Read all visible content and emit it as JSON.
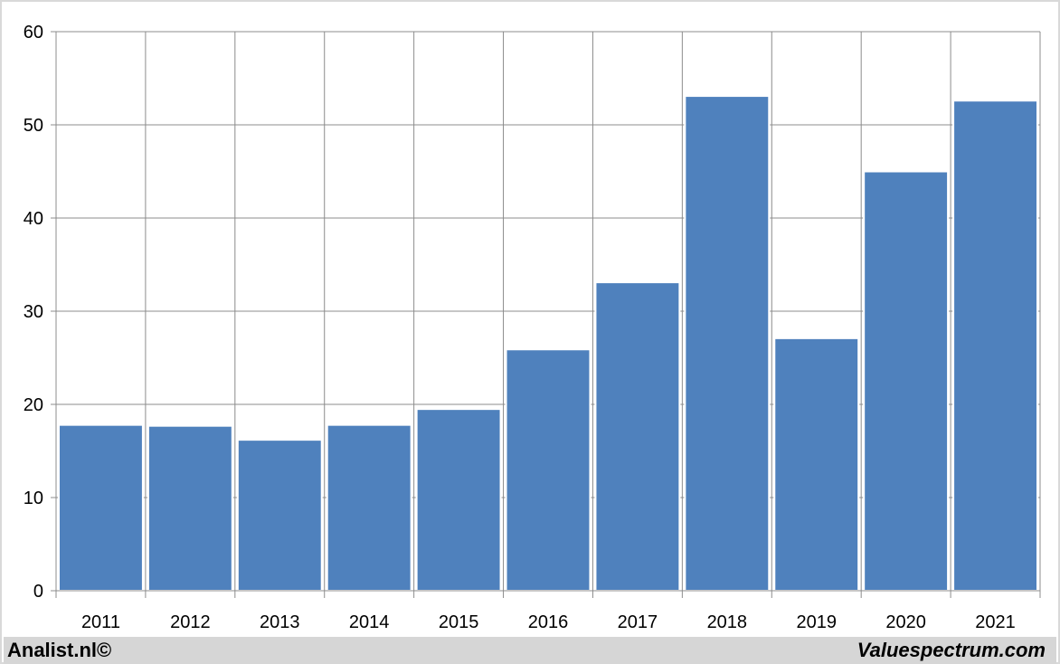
{
  "chart_data": {
    "type": "bar",
    "categories": [
      "2011",
      "2012",
      "2013",
      "2014",
      "2015",
      "2016",
      "2017",
      "2018",
      "2019",
      "2020",
      "2021"
    ],
    "values": [
      17.8,
      17.7,
      16.2,
      17.8,
      19.5,
      25.9,
      33.1,
      53.1,
      27.1,
      45.0,
      52.6
    ],
    "title": "",
    "xlabel": "",
    "ylabel": "",
    "ylim": [
      0,
      60
    ],
    "yticks": [
      "0",
      "10",
      "20",
      "30",
      "40",
      "50",
      "60"
    ],
    "grid": "on",
    "legend": "none",
    "bar_color": "#4f81bd"
  },
  "footer": {
    "left_text": "Analist.nl©",
    "right_text": "Valuespectrum.com"
  }
}
